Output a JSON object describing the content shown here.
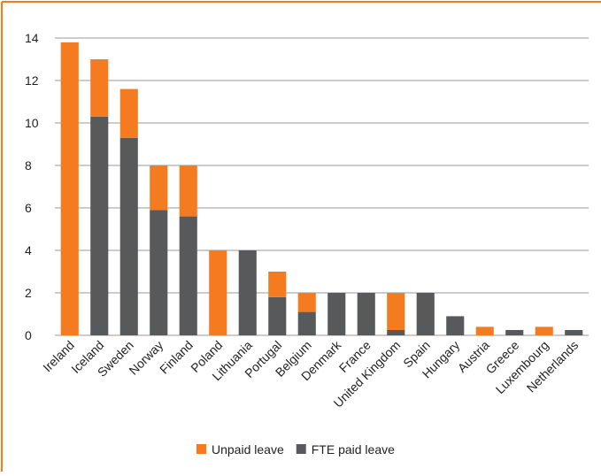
{
  "chart_data": {
    "type": "stacked-bar",
    "categories": [
      "Ireland",
      "Iceland",
      "Sweden",
      "Norway",
      "Finland",
      "Poland",
      "Lithuania",
      "Portugal",
      "Belgium",
      "Denmark",
      "France",
      "United Kingdom",
      "Spain",
      "Hungary",
      "Austria",
      "Greece",
      "Luxembourg",
      "Netherlands"
    ],
    "series": [
      {
        "name": "FTE paid leave",
        "color": "#58595b",
        "values": [
          0,
          10.3,
          9.3,
          5.9,
          5.6,
          0,
          4,
          1.8,
          1.1,
          2,
          2,
          0.25,
          2,
          0.9,
          0,
          0.25,
          0,
          0.25
        ]
      },
      {
        "name": "Unpaid leave",
        "color": "#f47b20",
        "values": [
          13.8,
          2.7,
          2.3,
          2.1,
          2.4,
          4,
          0,
          1.2,
          0.9,
          0,
          0,
          1.75,
          0,
          0,
          0.4,
          0,
          0.4,
          0
        ]
      }
    ],
    "legend_order": [
      1,
      0
    ],
    "ylim": [
      0,
      14
    ],
    "yticks": [
      0,
      2,
      4,
      6,
      8,
      10,
      12,
      14
    ],
    "grid": true
  }
}
